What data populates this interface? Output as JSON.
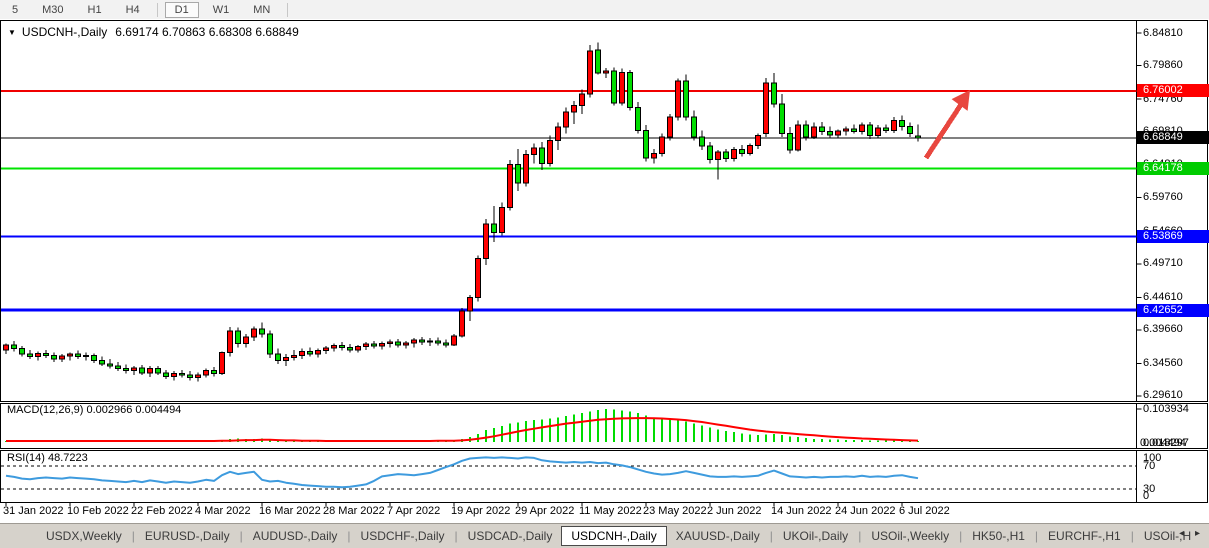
{
  "toolbar": {
    "timeframes": [
      "5",
      "M30",
      "H1",
      "H4",
      "D1",
      "W1",
      "MN"
    ],
    "active": "D1"
  },
  "title": {
    "dropdown_icon": "▼",
    "symbol": "USDCNH-,Daily",
    "ohlc": "6.69174 6.70863 6.68308 6.68849"
  },
  "colors": {
    "up_candle": "#ff0000",
    "down_candle": "#00dd00",
    "candle_outline": "#000000",
    "hline_red": "#f00000",
    "hline_green": "#00e400",
    "hline_blue": "#0000ff",
    "hline_black": "#000000",
    "macd_hist": "#00dc00",
    "macd_signal": "#ff0000",
    "rsi_line": "#3e9bde",
    "arrow": "#e8473f",
    "tag_red": "#ff0000",
    "tag_black": "#000000",
    "tag_green": "#00cc00",
    "tag_blue": "#0000ff",
    "panel_border": "#000000",
    "tabbar_bg": "#d6d2cb"
  },
  "price_axis": {
    "ticks": [
      "6.84810",
      "6.79860",
      "6.74760",
      "6.69810",
      "6.64810",
      "6.59760",
      "6.54660",
      "6.49710",
      "6.44610",
      "6.39660",
      "6.34560",
      "6.29610"
    ],
    "tick_prices": [
      6.8481,
      6.7986,
      6.7476,
      6.6981,
      6.6481,
      6.5976,
      6.5466,
      6.4971,
      6.4461,
      6.3966,
      6.3456,
      6.2961
    ],
    "tags": [
      {
        "text": "6.76002",
        "bg": "#ff0000",
        "price": 6.76002
      },
      {
        "text": "6.68849",
        "bg": "#000000",
        "price": 6.68849
      },
      {
        "text": "6.64178",
        "bg": "#00cc00",
        "price": 6.64178
      },
      {
        "text": "6.53869",
        "bg": "#0000ff",
        "price": 6.53869
      },
      {
        "text": "6.42652",
        "bg": "#0000ff",
        "price": 6.42652
      }
    ]
  },
  "hlines": [
    {
      "price": 6.76002,
      "color": "#f00000",
      "width": 2
    },
    {
      "price": 6.68849,
      "color": "#000000",
      "width": 1
    },
    {
      "price": 6.64178,
      "color": "#00e400",
      "width": 2
    },
    {
      "price": 6.53869,
      "color": "#0000ff",
      "width": 2
    },
    {
      "price": 6.42652,
      "color": "#0000ff",
      "width": 3
    }
  ],
  "chart_data": {
    "type": "candlestick",
    "symbol": "USDCNH-",
    "timeframe": "Daily",
    "x_range": [
      "31 Jan 2022",
      "8 Jul 2022"
    ],
    "y_range": [
      6.2961,
      6.8481
    ],
    "candles": [
      [
        6.366,
        6.376,
        6.36,
        6.374
      ],
      [
        6.374,
        6.38,
        6.364,
        6.368
      ],
      [
        6.368,
        6.372,
        6.356,
        6.36
      ],
      [
        6.36,
        6.366,
        6.352,
        6.356
      ],
      [
        6.356,
        6.364,
        6.35,
        6.361
      ],
      [
        6.361,
        6.366,
        6.354,
        6.358
      ],
      [
        6.358,
        6.362,
        6.348,
        6.352
      ],
      [
        6.352,
        6.36,
        6.348,
        6.357
      ],
      [
        6.357,
        6.362,
        6.35,
        6.36
      ],
      [
        6.36,
        6.365,
        6.352,
        6.356
      ],
      [
        6.356,
        6.362,
        6.35,
        6.358
      ],
      [
        6.358,
        6.361,
        6.346,
        6.35
      ],
      [
        6.35,
        6.356,
        6.342,
        6.345
      ],
      [
        6.345,
        6.352,
        6.338,
        6.342
      ],
      [
        6.342,
        6.348,
        6.334,
        6.338
      ],
      [
        6.338,
        6.344,
        6.33,
        6.335
      ],
      [
        6.335,
        6.342,
        6.328,
        6.339
      ],
      [
        6.339,
        6.343,
        6.328,
        6.331
      ],
      [
        6.331,
        6.342,
        6.325,
        6.338
      ],
      [
        6.338,
        6.342,
        6.328,
        6.331
      ],
      [
        6.331,
        6.336,
        6.322,
        6.326
      ],
      [
        6.326,
        6.334,
        6.32,
        6.33
      ],
      [
        6.33,
        6.336,
        6.324,
        6.328
      ],
      [
        6.328,
        6.334,
        6.32,
        6.324
      ],
      [
        6.324,
        6.332,
        6.318,
        6.328
      ],
      [
        6.328,
        6.338,
        6.324,
        6.335
      ],
      [
        6.335,
        6.34,
        6.326,
        6.33
      ],
      [
        6.33,
        6.364,
        6.328,
        6.362
      ],
      [
        6.362,
        6.401,
        6.356,
        6.395
      ],
      [
        6.395,
        6.4,
        6.37,
        6.376
      ],
      [
        6.376,
        6.39,
        6.37,
        6.386
      ],
      [
        6.386,
        6.402,
        6.38,
        6.398
      ],
      [
        6.398,
        6.408,
        6.385,
        6.39
      ],
      [
        6.39,
        6.396,
        6.354,
        6.36
      ],
      [
        6.36,
        6.368,
        6.345,
        6.35
      ],
      [
        6.35,
        6.36,
        6.342,
        6.355
      ],
      [
        6.355,
        6.366,
        6.35,
        6.358
      ],
      [
        6.358,
        6.368,
        6.352,
        6.364
      ],
      [
        6.364,
        6.37,
        6.356,
        6.36
      ],
      [
        6.36,
        6.368,
        6.355,
        6.365
      ],
      [
        6.365,
        6.372,
        6.36,
        6.369
      ],
      [
        6.369,
        6.376,
        6.364,
        6.373
      ],
      [
        6.373,
        6.378,
        6.365,
        6.37
      ],
      [
        6.37,
        6.375,
        6.362,
        6.366
      ],
      [
        6.366,
        6.374,
        6.362,
        6.371
      ],
      [
        6.371,
        6.378,
        6.366,
        6.375
      ],
      [
        6.375,
        6.38,
        6.368,
        6.372
      ],
      [
        6.372,
        6.379,
        6.367,
        6.376
      ],
      [
        6.376,
        6.382,
        6.37,
        6.378
      ],
      [
        6.378,
        6.383,
        6.37,
        6.374
      ],
      [
        6.374,
        6.38,
        6.368,
        6.377
      ],
      [
        6.377,
        6.384,
        6.37,
        6.381
      ],
      [
        6.381,
        6.386,
        6.374,
        6.378
      ],
      [
        6.378,
        6.384,
        6.372,
        6.38
      ],
      [
        6.38,
        6.385,
        6.373,
        6.377
      ],
      [
        6.377,
        6.382,
        6.37,
        6.374
      ],
      [
        6.374,
        6.39,
        6.372,
        6.387
      ],
      [
        6.387,
        6.43,
        6.385,
        6.425
      ],
      [
        6.425,
        6.45,
        6.41,
        6.446
      ],
      [
        6.446,
        6.51,
        6.44,
        6.505
      ],
      [
        6.505,
        6.565,
        6.495,
        6.558
      ],
      [
        6.558,
        6.585,
        6.53,
        6.545
      ],
      [
        6.545,
        6.59,
        6.54,
        6.583
      ],
      [
        6.583,
        6.655,
        6.578,
        6.648
      ],
      [
        6.648,
        6.672,
        6.608,
        6.62
      ],
      [
        6.62,
        6.67,
        6.615,
        6.663
      ],
      [
        6.663,
        6.68,
        6.65,
        6.673
      ],
      [
        6.673,
        6.682,
        6.64,
        6.65
      ],
      [
        6.65,
        6.692,
        6.645,
        6.685
      ],
      [
        6.685,
        6.712,
        6.67,
        6.705
      ],
      [
        6.705,
        6.735,
        6.695,
        6.728
      ],
      [
        6.728,
        6.745,
        6.71,
        6.738
      ],
      [
        6.738,
        6.762,
        6.725,
        6.755
      ],
      [
        6.755,
        6.83,
        6.75,
        6.821
      ],
      [
        6.822,
        6.834,
        6.785,
        6.787
      ],
      [
        6.787,
        6.795,
        6.78,
        6.79
      ],
      [
        6.79,
        6.796,
        6.738,
        6.742
      ],
      [
        6.742,
        6.794,
        6.738,
        6.788
      ],
      [
        6.788,
        6.792,
        6.73,
        6.735
      ],
      [
        6.735,
        6.743,
        6.695,
        6.7
      ],
      [
        6.7,
        6.708,
        6.653,
        6.658
      ],
      [
        6.658,
        6.672,
        6.65,
        6.665
      ],
      [
        6.665,
        6.695,
        6.66,
        6.69
      ],
      [
        6.69,
        6.725,
        6.685,
        6.72
      ],
      [
        6.72,
        6.779,
        6.715,
        6.775
      ],
      [
        6.775,
        6.785,
        6.715,
        6.72
      ],
      [
        6.72,
        6.73,
        6.685,
        6.69
      ],
      [
        6.69,
        6.7,
        6.67,
        6.676
      ],
      [
        6.676,
        6.682,
        6.65,
        6.656
      ],
      [
        6.656,
        6.67,
        6.625,
        6.667
      ],
      [
        6.667,
        6.672,
        6.652,
        6.657
      ],
      [
        6.657,
        6.675,
        6.653,
        6.671
      ],
      [
        6.671,
        6.678,
        6.66,
        6.665
      ],
      [
        6.665,
        6.68,
        6.662,
        6.677
      ],
      [
        6.677,
        6.695,
        6.672,
        6.692
      ],
      [
        6.695,
        6.78,
        6.69,
        6.772
      ],
      [
        6.772,
        6.787,
        6.735,
        6.74
      ],
      [
        6.74,
        6.755,
        6.69,
        6.695
      ],
      [
        6.695,
        6.705,
        6.665,
        6.67
      ],
      [
        6.67,
        6.715,
        6.668,
        6.708
      ],
      [
        6.708,
        6.715,
        6.685,
        6.69
      ],
      [
        6.69,
        6.712,
        6.687,
        6.705
      ],
      [
        6.705,
        6.713,
        6.693,
        6.698
      ],
      [
        6.698,
        6.706,
        6.689,
        6.693
      ],
      [
        6.693,
        6.701,
        6.688,
        6.699
      ],
      [
        6.699,
        6.706,
        6.692,
        6.702
      ],
      [
        6.702,
        6.709,
        6.695,
        6.698
      ],
      [
        6.698,
        6.712,
        6.694,
        6.708
      ],
      [
        6.708,
        6.713,
        6.687,
        6.692
      ],
      [
        6.692,
        6.708,
        6.688,
        6.704
      ],
      [
        6.704,
        6.709,
        6.696,
        6.7
      ],
      [
        6.7,
        6.72,
        6.696,
        6.715
      ],
      [
        6.715,
        6.723,
        6.7,
        6.706
      ],
      [
        6.706,
        6.712,
        6.69,
        6.695
      ],
      [
        6.69174,
        6.70863,
        6.68308,
        6.68849
      ]
    ]
  },
  "macd": {
    "label": "MACD(12,26,9)",
    "values": "0.002966 0.004494",
    "axis_top": "0.103934",
    "axis_bottom_overlap": [
      "0.018297",
      "0.004494"
    ],
    "histogram": [
      0.003,
      0.003,
      0.002,
      0.002,
      0.002,
      0.003,
      0.002,
      0.002,
      0.003,
      0.002,
      0.002,
      0.002,
      0.001,
      0.001,
      0.001,
      0.001,
      0.002,
      0.001,
      0.002,
      0.001,
      0.001,
      0.002,
      0.002,
      0.001,
      0.002,
      0.003,
      0.002,
      0.005,
      0.009,
      0.011,
      0.009,
      0.01,
      0.011,
      0.008,
      0.004,
      0.002,
      0.002,
      0.001,
      0.001,
      0.002,
      0.002,
      0.002,
      0.003,
      0.003,
      0.002,
      0.002,
      0.003,
      0.003,
      0.003,
      0.003,
      0.004,
      0.004,
      0.004,
      0.003,
      0.003,
      0.003,
      0.005,
      0.01,
      0.016,
      0.026,
      0.038,
      0.044,
      0.05,
      0.058,
      0.062,
      0.066,
      0.069,
      0.071,
      0.074,
      0.078,
      0.082,
      0.086,
      0.091,
      0.097,
      0.101,
      0.1039,
      0.102,
      0.1,
      0.096,
      0.091,
      0.084,
      0.078,
      0.074,
      0.071,
      0.069,
      0.065,
      0.059,
      0.052,
      0.046,
      0.04,
      0.035,
      0.031,
      0.027,
      0.024,
      0.022,
      0.024,
      0.026,
      0.022,
      0.018,
      0.015,
      0.012,
      0.01,
      0.009,
      0.008,
      0.0075,
      0.007,
      0.0065,
      0.006,
      0.0055,
      0.005,
      0.0045,
      0.004,
      0.0035,
      0.003,
      0.002966
    ],
    "signal": [
      0.003,
      0.003,
      0.003,
      0.003,
      0.003,
      0.003,
      0.003,
      0.003,
      0.003,
      0.003,
      0.003,
      0.003,
      0.003,
      0.003,
      0.003,
      0.003,
      0.003,
      0.003,
      0.003,
      0.003,
      0.003,
      0.003,
      0.003,
      0.003,
      0.003,
      0.003,
      0.003,
      0.004,
      0.004,
      0.005,
      0.006,
      0.006,
      0.007,
      0.007,
      0.006,
      0.005,
      0.005,
      0.004,
      0.004,
      0.004,
      0.003,
      0.003,
      0.003,
      0.003,
      0.003,
      0.003,
      0.003,
      0.003,
      0.003,
      0.003,
      0.003,
      0.003,
      0.003,
      0.003,
      0.004,
      0.004,
      0.004,
      0.005,
      0.007,
      0.01,
      0.014,
      0.018,
      0.023,
      0.028,
      0.033,
      0.038,
      0.042,
      0.046,
      0.05,
      0.054,
      0.058,
      0.061,
      0.064,
      0.067,
      0.07,
      0.072,
      0.0735,
      0.0745,
      0.075,
      0.0755,
      0.0755,
      0.075,
      0.074,
      0.0725,
      0.071,
      0.069,
      0.066,
      0.063,
      0.059,
      0.055,
      0.051,
      0.047,
      0.043,
      0.039,
      0.036,
      0.033,
      0.031,
      0.029,
      0.027,
      0.025,
      0.023,
      0.021,
      0.019,
      0.017,
      0.0155,
      0.014,
      0.0125,
      0.011,
      0.01,
      0.009,
      0.008,
      0.007,
      0.006,
      0.005,
      0.004494
    ]
  },
  "rsi": {
    "label": "RSI(14)",
    "value": "48.7223",
    "axis_labels": [
      "100",
      "70",
      "30",
      "0"
    ],
    "levels": [
      70,
      30
    ],
    "series": [
      53,
      51,
      48,
      47,
      49,
      50,
      49,
      48,
      50,
      49,
      48,
      47,
      45,
      44,
      43,
      42,
      44,
      42,
      45,
      43,
      41,
      43,
      42,
      41,
      43,
      46,
      44,
      54,
      60,
      56,
      58,
      60,
      46,
      43,
      44,
      41,
      39,
      37,
      36,
      35,
      34,
      34,
      33,
      34,
      36,
      38,
      44,
      52,
      54,
      56,
      55,
      54,
      56,
      58,
      63,
      68,
      73,
      79,
      83,
      84,
      85,
      84,
      85,
      84,
      83,
      85,
      84,
      80,
      78,
      77,
      76,
      77,
      76,
      77,
      75,
      76,
      73,
      71,
      68,
      64,
      60,
      57,
      55,
      56,
      58,
      61,
      58,
      55,
      52,
      51,
      51,
      52,
      51,
      52,
      53,
      58,
      62,
      57,
      52,
      51,
      50,
      51,
      50,
      51,
      51,
      52,
      51,
      53,
      51,
      52,
      51,
      53,
      54,
      51,
      48.72
    ]
  },
  "date_axis": [
    "31 Jan 2022",
    "10 Feb 2022",
    "22 Feb 2022",
    "4 Mar 2022",
    "16 Mar 2022",
    "28 Mar 2022",
    "7 Apr 2022",
    "19 Apr 2022",
    "29 Apr 2022",
    "11 May 2022",
    "23 May 2022",
    "2 Jun 2022",
    "14 Jun 2022",
    "24 Jun 2022",
    "6 Jul 2022"
  ],
  "tabs": {
    "items": [
      "USDX,Weekly",
      "EURUSD-,Daily",
      "AUDUSD-,Daily",
      "USDCHF-,Daily",
      "USDCAD-,Daily",
      "USDCNH-,Daily",
      "XAUUSD-,Daily",
      "UKOil-,Daily",
      "USOil-,Weekly",
      "HK50-,H1",
      "EURCHF-,H1",
      "USOil-,H"
    ],
    "active": "USDCNH-,Daily",
    "scroll_left": "◂",
    "scroll_right": "▸"
  }
}
